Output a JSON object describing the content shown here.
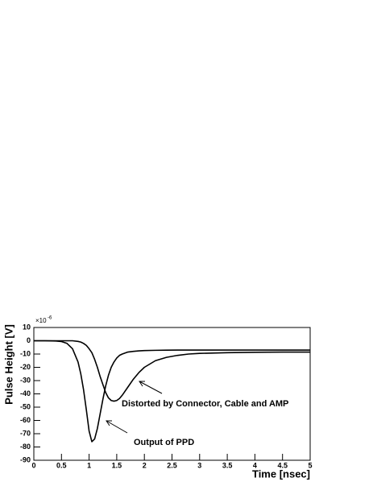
{
  "chart_data": {
    "type": "line",
    "xlabel": "Time [nsec]",
    "ylabel": "Pulse Height [V]",
    "y_multiplier": "×10",
    "y_multiplier_exp": "-6",
    "annotations": [
      "Distorted by Connector, Cable and AMP",
      "Output of PPD"
    ],
    "x": [
      0,
      0.2,
      0.4,
      0.5,
      0.6,
      0.7,
      0.8,
      0.85,
      0.9,
      0.95,
      1.0,
      1.05,
      1.1,
      1.15,
      1.2,
      1.25,
      1.3,
      1.35,
      1.4,
      1.45,
      1.5,
      1.55,
      1.6,
      1.7,
      1.8,
      1.9,
      2.0,
      2.2,
      2.4,
      2.6,
      2.8,
      3.0,
      3.5,
      4.0,
      4.5,
      5.0
    ],
    "series": [
      {
        "color": "#000000",
        "values": [
          0,
          0,
          -0.2,
          -0.6,
          -2,
          -6,
          -16,
          -25,
          -37,
          -52,
          -68,
          -76,
          -74,
          -66,
          -55,
          -44,
          -34,
          -26,
          -20,
          -16,
          -13,
          -11,
          -10,
          -8.5,
          -8,
          -7.6,
          -7.4,
          -7.2,
          -7.1,
          -7,
          -7,
          -7,
          -7,
          -7,
          -7,
          -7
        ]
      },
      {
        "color": "#000000",
        "values": [
          0,
          0,
          0,
          0,
          0,
          0,
          -0.5,
          -1,
          -2,
          -3.5,
          -6,
          -9,
          -14,
          -20,
          -27,
          -33,
          -39,
          -43,
          -45,
          -45.5,
          -45,
          -43.5,
          -41,
          -35,
          -29,
          -24,
          -20,
          -15,
          -12.5,
          -11,
          -10,
          -9.5,
          -9,
          -8.7,
          -8.5,
          -8.5
        ]
      }
    ],
    "xlim": [
      0,
      5
    ],
    "xticks": [
      0,
      0.5,
      1,
      1.5,
      2,
      2.5,
      3,
      3.5,
      4,
      4.5,
      5
    ],
    "ylim": [
      -90,
      10
    ],
    "yticks": [
      -90,
      -80,
      -70,
      -60,
      -50,
      -40,
      -30,
      -20,
      -10,
      0,
      10
    ],
    "grid": false
  }
}
